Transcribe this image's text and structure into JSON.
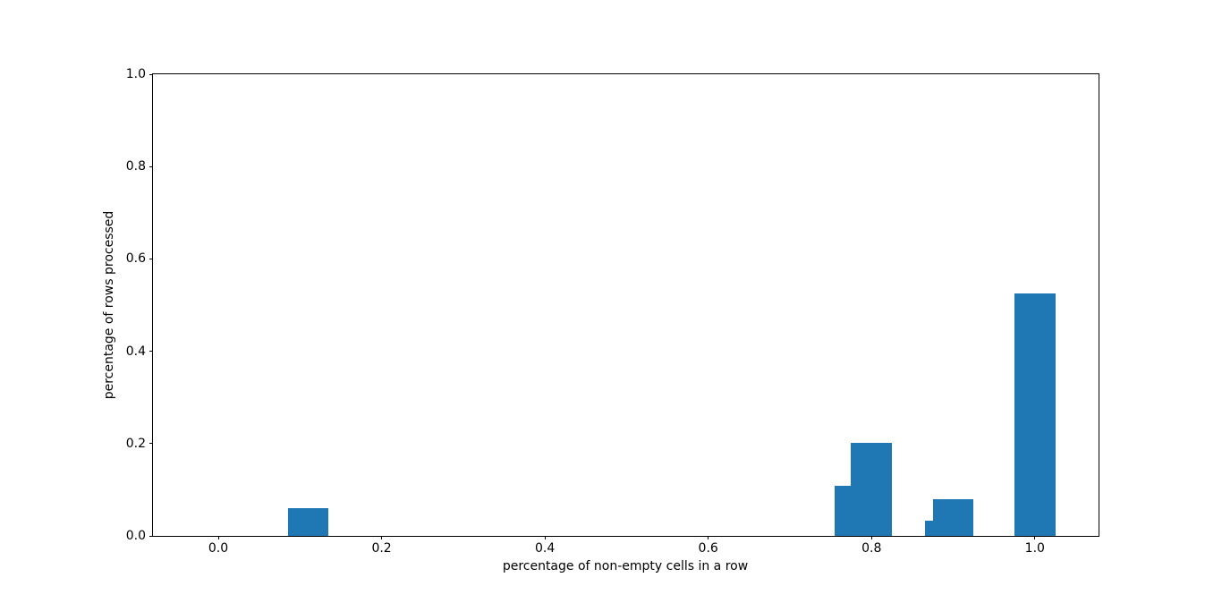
{
  "chart_data": {
    "type": "bar",
    "title": "",
    "xlabel": "percentage of non-empty cells in a row",
    "ylabel": "percentage of rows processed",
    "bar_color": "#1f77b4",
    "bar_width": 0.05,
    "xlim": [
      -0.08,
      1.078
    ],
    "ylim": [
      0.0,
      1.0
    ],
    "grid": "off",
    "legend": "none",
    "xticks": [
      {
        "value": 0.0,
        "label": "0.0"
      },
      {
        "value": 0.2,
        "label": "0.2"
      },
      {
        "value": 0.4,
        "label": "0.4"
      },
      {
        "value": 0.6,
        "label": "0.6"
      },
      {
        "value": 0.8,
        "label": "0.8"
      },
      {
        "value": 1.0,
        "label": "1.0"
      }
    ],
    "yticks": [
      {
        "value": 0.0,
        "label": "0.0"
      },
      {
        "value": 0.2,
        "label": "0.2"
      },
      {
        "value": 0.4,
        "label": "0.4"
      },
      {
        "value": 0.6,
        "label": "0.6"
      },
      {
        "value": 0.8,
        "label": "0.8"
      },
      {
        "value": 1.0,
        "label": "1.0"
      }
    ],
    "bars": [
      {
        "x": 0.11,
        "height": 0.061
      },
      {
        "x": 0.78,
        "height": 0.109
      },
      {
        "x": 0.8,
        "height": 0.201
      },
      {
        "x": 0.89,
        "height": 0.033
      },
      {
        "x": 0.9,
        "height": 0.079
      },
      {
        "x": 1.0,
        "height": 0.525
      }
    ]
  }
}
